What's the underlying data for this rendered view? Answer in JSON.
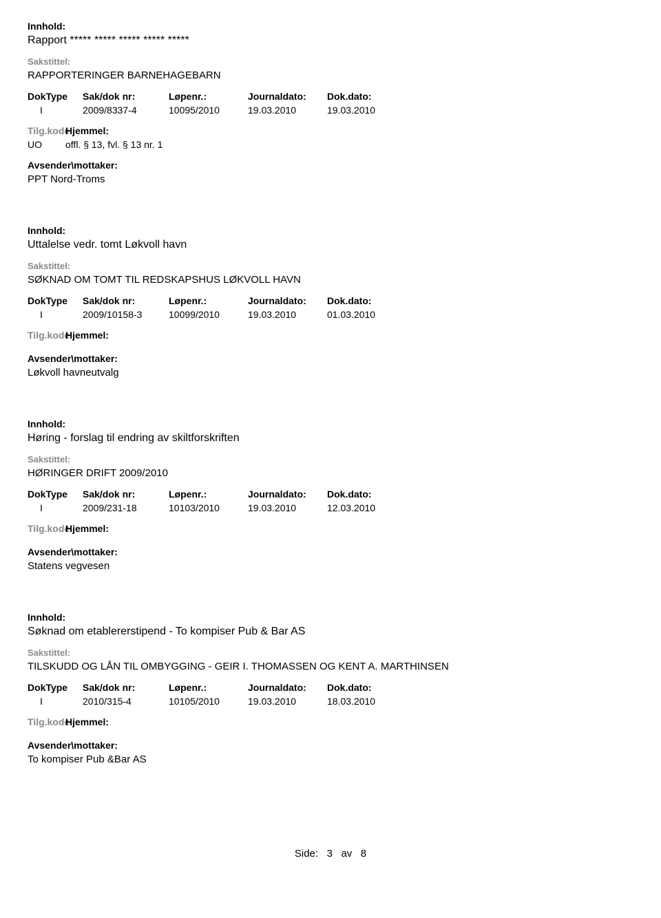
{
  "labels": {
    "innhold": "Innhold:",
    "sakstittel": "Sakstittel:",
    "doktype": "DokType",
    "sakdok": "Sak/dok nr:",
    "lopenr": "Løpenr.:",
    "journaldato": "Journaldato:",
    "dokdato": "Dok.dato:",
    "tilgkode": "Tilg.kode",
    "hjemmel": "Hjemmel:",
    "avsender": "Avsender\\mottaker:"
  },
  "entries": [
    {
      "innhold": "Rapport ***** ***** ***** ***** *****",
      "sakstittel": "RAPPORTERINGER BARNEHAGEBARN",
      "doktype": "I",
      "sakdok": "2009/8337-4",
      "lopenr": "10095/2010",
      "journaldato": "19.03.2010",
      "dokdato": "19.03.2010",
      "tilgkode": "UO",
      "hjemmel": "offl. § 13, fvl. § 13 nr. 1",
      "avsender": "PPT Nord-Troms"
    },
    {
      "innhold": "Uttalelse vedr. tomt Løkvoll havn",
      "sakstittel": "SØKNAD OM TOMT TIL REDSKAPSHUS LØKVOLL HAVN",
      "doktype": "I",
      "sakdok": "2009/10158-3",
      "lopenr": "10099/2010",
      "journaldato": "19.03.2010",
      "dokdato": "01.03.2010",
      "tilgkode": "",
      "hjemmel": "",
      "avsender": "Løkvoll havneutvalg"
    },
    {
      "innhold": "Høring - forslag til endring av skiltforskriften",
      "sakstittel": "HØRINGER DRIFT 2009/2010",
      "doktype": "I",
      "sakdok": "2009/231-18",
      "lopenr": "10103/2010",
      "journaldato": "19.03.2010",
      "dokdato": "12.03.2010",
      "tilgkode": "",
      "hjemmel": "",
      "avsender": "Statens vegvesen"
    },
    {
      "innhold": "Søknad om etablererstipend - To kompiser Pub & Bar AS",
      "sakstittel": "TILSKUDD OG LÅN TIL OMBYGGING - GEIR I. THOMASSEN OG KENT A. MARTHINSEN",
      "doktype": "I",
      "sakdok": "2010/315-4",
      "lopenr": "10105/2010",
      "journaldato": "19.03.2010",
      "dokdato": "18.03.2010",
      "tilgkode": "",
      "hjemmel": "",
      "avsender": "To kompiser Pub &Bar AS"
    }
  ],
  "footer": {
    "prefix": "Side:",
    "page": "3",
    "sep": "av",
    "total": "8"
  }
}
